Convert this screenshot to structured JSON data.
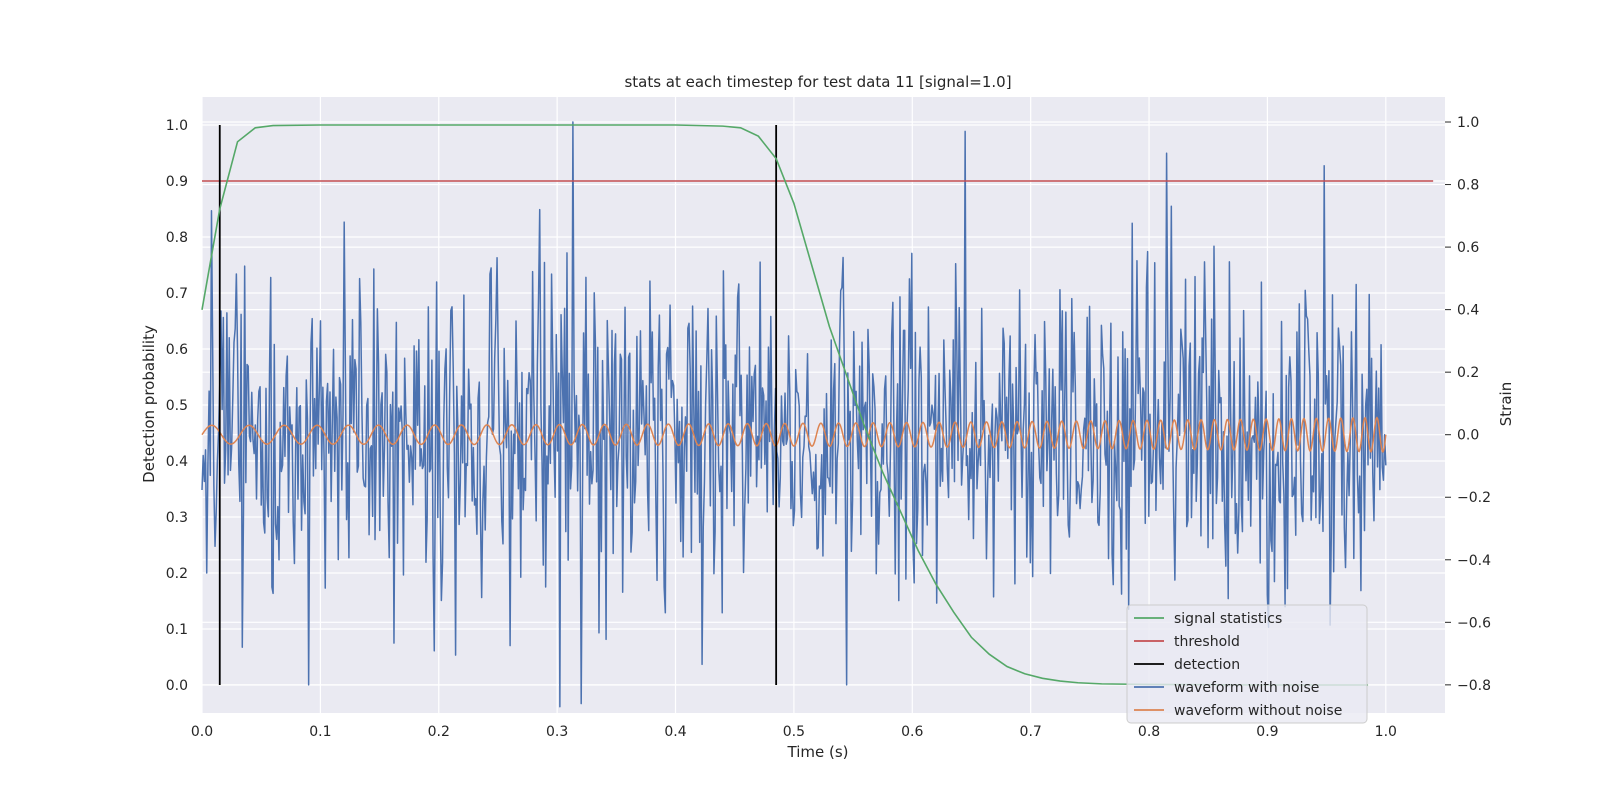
{
  "chart_data": {
    "type": "line",
    "title": "stats at each timestep for test data 11 [signal=1.0]",
    "xlabel": "Time (s)",
    "ylabel": "Detection probability",
    "y2label": "Strain",
    "xlim": [
      0.0,
      1.05
    ],
    "ylim": [
      -0.05,
      1.05
    ],
    "y2lim": [
      -0.89,
      1.08
    ],
    "grid": true,
    "x_ticks": [
      "0.0",
      "0.1",
      "0.2",
      "0.3",
      "0.4",
      "0.5",
      "0.6",
      "0.7",
      "0.8",
      "0.9",
      "1.0"
    ],
    "y_ticks": [
      "0.0",
      "0.1",
      "0.2",
      "0.3",
      "0.4",
      "0.5",
      "0.6",
      "0.7",
      "0.8",
      "0.9",
      "1.0"
    ],
    "y2_ticks": [
      "−0.8",
      "−0.6",
      "−0.4",
      "−0.2",
      "0.0",
      "0.2",
      "0.4",
      "0.6",
      "0.8",
      "1.0"
    ],
    "legend_position": "lower-right",
    "colors": {
      "signal_statistics": "#55a868",
      "threshold": "#c44e52",
      "detection": "#000000",
      "waveform_with_noise": "#4c72b0",
      "waveform_without_noise": "#dd8452",
      "background": "#eaeaf2"
    },
    "series": [
      {
        "name": "signal statistics",
        "axis": "left",
        "x": [
          0.0,
          0.015,
          0.03,
          0.045,
          0.06,
          0.1,
          0.2,
          0.3,
          0.4,
          0.44,
          0.455,
          0.47,
          0.485,
          0.5,
          0.515,
          0.53,
          0.545,
          0.56,
          0.575,
          0.59,
          0.605,
          0.62,
          0.635,
          0.65,
          0.665,
          0.68,
          0.695,
          0.71,
          0.725,
          0.74,
          0.76,
          0.8,
          0.9,
          0.985
        ],
        "y": [
          0.67,
          0.85,
          0.97,
          0.995,
          0.999,
          1.0,
          1.0,
          1.0,
          1.0,
          0.998,
          0.995,
          0.98,
          0.94,
          0.86,
          0.75,
          0.64,
          0.55,
          0.46,
          0.38,
          0.31,
          0.24,
          0.18,
          0.13,
          0.085,
          0.055,
          0.033,
          0.02,
          0.012,
          0.007,
          0.004,
          0.002,
          0.001,
          0.0,
          0.0
        ]
      },
      {
        "name": "threshold",
        "axis": "left",
        "x": [
          0.0,
          1.04
        ],
        "y": [
          0.9,
          0.9
        ]
      },
      {
        "name": "detection",
        "axis": "left",
        "x_positions": [
          0.015,
          0.485
        ],
        "y_range": [
          0.0,
          1.0
        ]
      },
      {
        "name": "waveform with noise",
        "axis": "right",
        "x_range": [
          0.0,
          1.0
        ],
        "n_points": 1000,
        "std": 0.26,
        "peaks": [
          [
            0.313,
            1.0
          ],
          [
            0.645,
            0.97
          ],
          [
            0.815,
            0.9
          ],
          [
            0.948,
            0.86
          ],
          [
            0.12,
            0.68
          ],
          [
            0.285,
            0.72
          ],
          [
            0.6,
            0.58
          ]
        ],
        "troughs": [
          [
            0.302,
            -0.87
          ],
          [
            0.545,
            -0.8
          ],
          [
            0.09,
            -0.8
          ],
          [
            0.32,
            -0.86
          ]
        ]
      },
      {
        "name": "waveform without noise",
        "axis": "right",
        "x_range": [
          0.0,
          1.0
        ],
        "amplitude_start": 0.03,
        "amplitude_end": 0.055,
        "freq_start_hz": 30,
        "freq_end_hz": 100
      }
    ]
  }
}
